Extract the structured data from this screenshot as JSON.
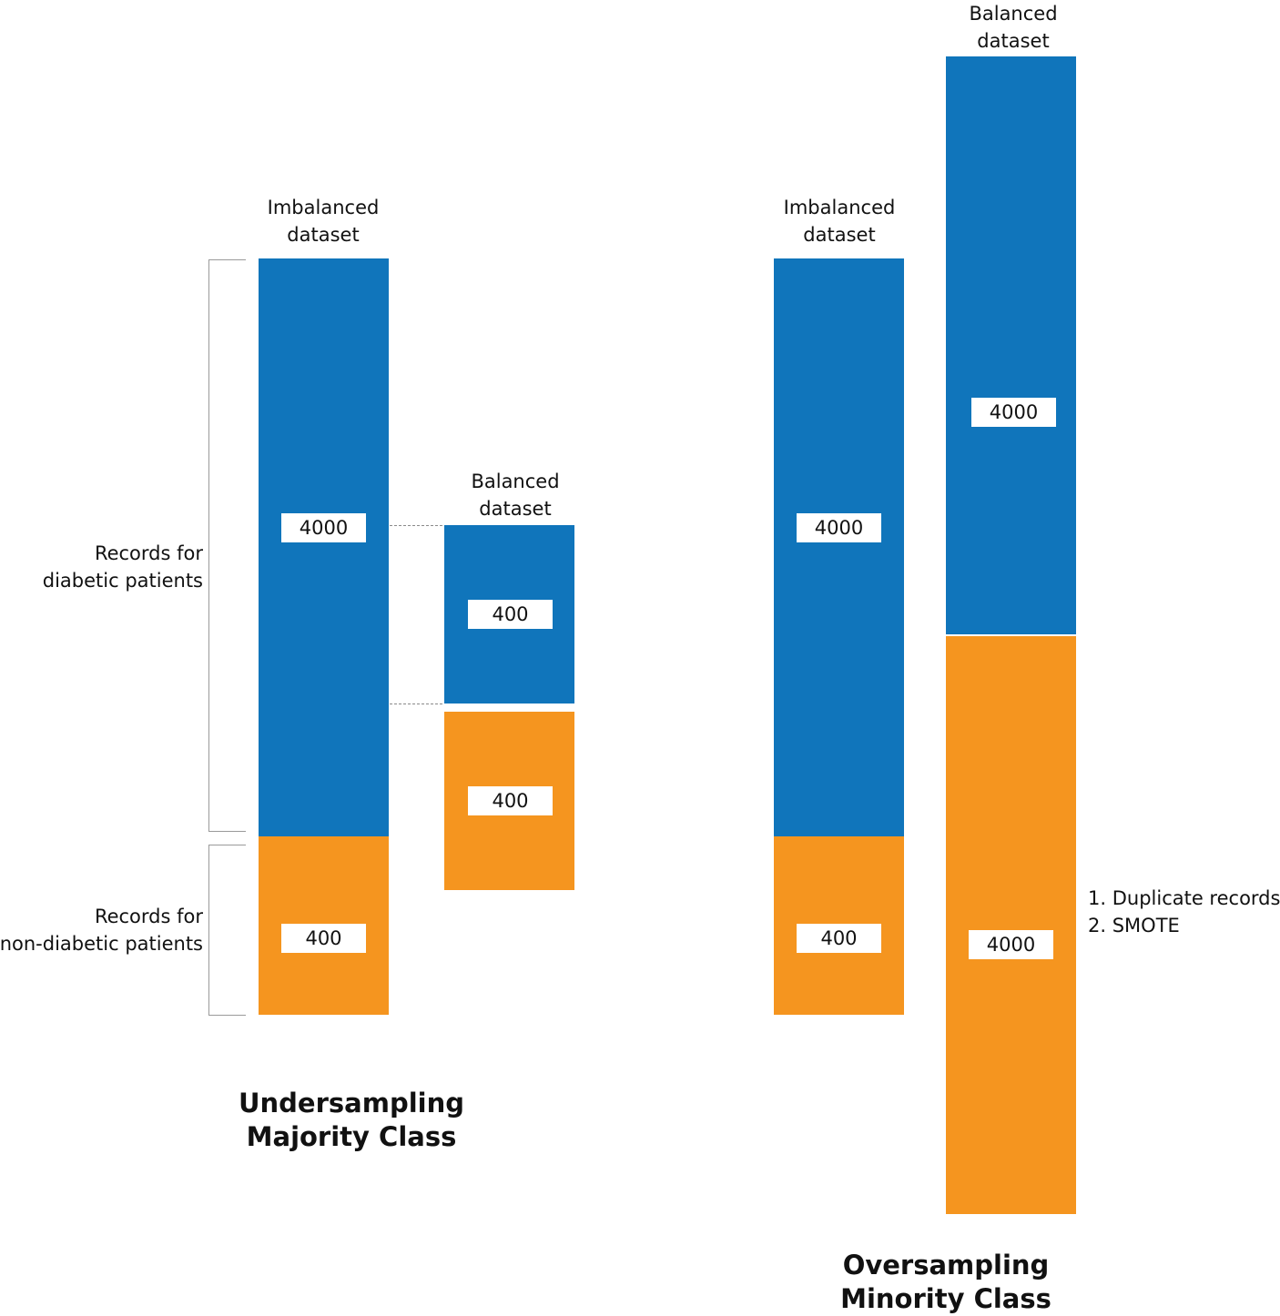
{
  "colors": {
    "majority": "#1075bb",
    "minority": "#f5951f"
  },
  "undersampling": {
    "section_title": [
      "Undersampling",
      "Majority Class"
    ],
    "imbalanced": {
      "title": [
        "Imbalanced",
        "dataset"
      ],
      "majority_value": "4000",
      "minority_value": "400"
    },
    "balanced": {
      "title": [
        "Balanced",
        "dataset"
      ],
      "majority_value": "400",
      "minority_value": "400"
    },
    "labels": {
      "diabetic": [
        "Records for",
        "diabetic patients"
      ],
      "non_diabetic": [
        "Records for",
        "non-diabetic patients"
      ]
    }
  },
  "oversampling": {
    "section_title": [
      "Oversampling",
      "Minority Class"
    ],
    "imbalanced": {
      "title": [
        "Imbalanced",
        "dataset"
      ],
      "majority_value": "4000",
      "minority_value": "400"
    },
    "balanced": {
      "title": [
        "Balanced",
        "dataset"
      ],
      "majority_value": "4000",
      "minority_value": "4000"
    },
    "methods": [
      "1. Duplicate records",
      "2. SMOTE"
    ]
  }
}
